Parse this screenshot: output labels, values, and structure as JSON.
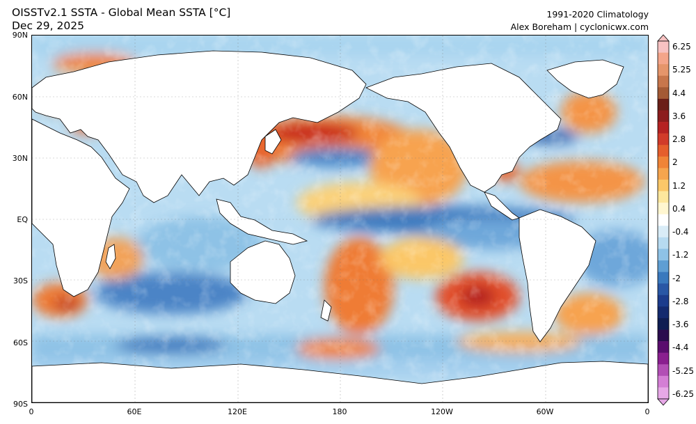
{
  "header": {
    "title_line1": "OISSTv2.1 SSTA - Global Mean SSTA [°C]",
    "title_line2": "Dec 29, 2025",
    "climatology": "1991-2020 Climatology",
    "credit": "Alex Boreham | cyclonicwx.com"
  },
  "map": {
    "lat_ticks": [
      "90N",
      "60N",
      "30N",
      "EQ",
      "30S",
      "60S",
      "90S"
    ],
    "lon_ticks": [
      "0",
      "60E",
      "120E",
      "180",
      "120W",
      "60W",
      "0"
    ],
    "grid": true,
    "projection": "equirectangular"
  },
  "colorbar": {
    "labels": [
      "6.25",
      "5.25",
      "4.4",
      "3.6",
      "2.8",
      "2",
      "1.2",
      "0.4",
      "-0.4",
      "-1.2",
      "-2",
      "-2.8",
      "-3.6",
      "-4.4",
      "-5.25",
      "-6.25"
    ],
    "colors": [
      "#f7c2c2",
      "#f4a58a",
      "#e5956b",
      "#c7764c",
      "#a45a35",
      "#6b1f18",
      "#8c1d1d",
      "#b52222",
      "#d13b2a",
      "#e55e2c",
      "#f08437",
      "#f6a54e",
      "#fbc768",
      "#fde79d",
      "#fff6d0",
      "#ffffff",
      "#d9ecf7",
      "#b7dbf1",
      "#8ec2e6",
      "#5f9ed3",
      "#3a79bd",
      "#2957a5",
      "#1c3c8c",
      "#142a6e",
      "#0f1d52",
      "#2a0c4e",
      "#5a0d6e",
      "#8a1f8f",
      "#b24fb5",
      "#d47fd5",
      "#e7a8e7"
    ]
  }
}
